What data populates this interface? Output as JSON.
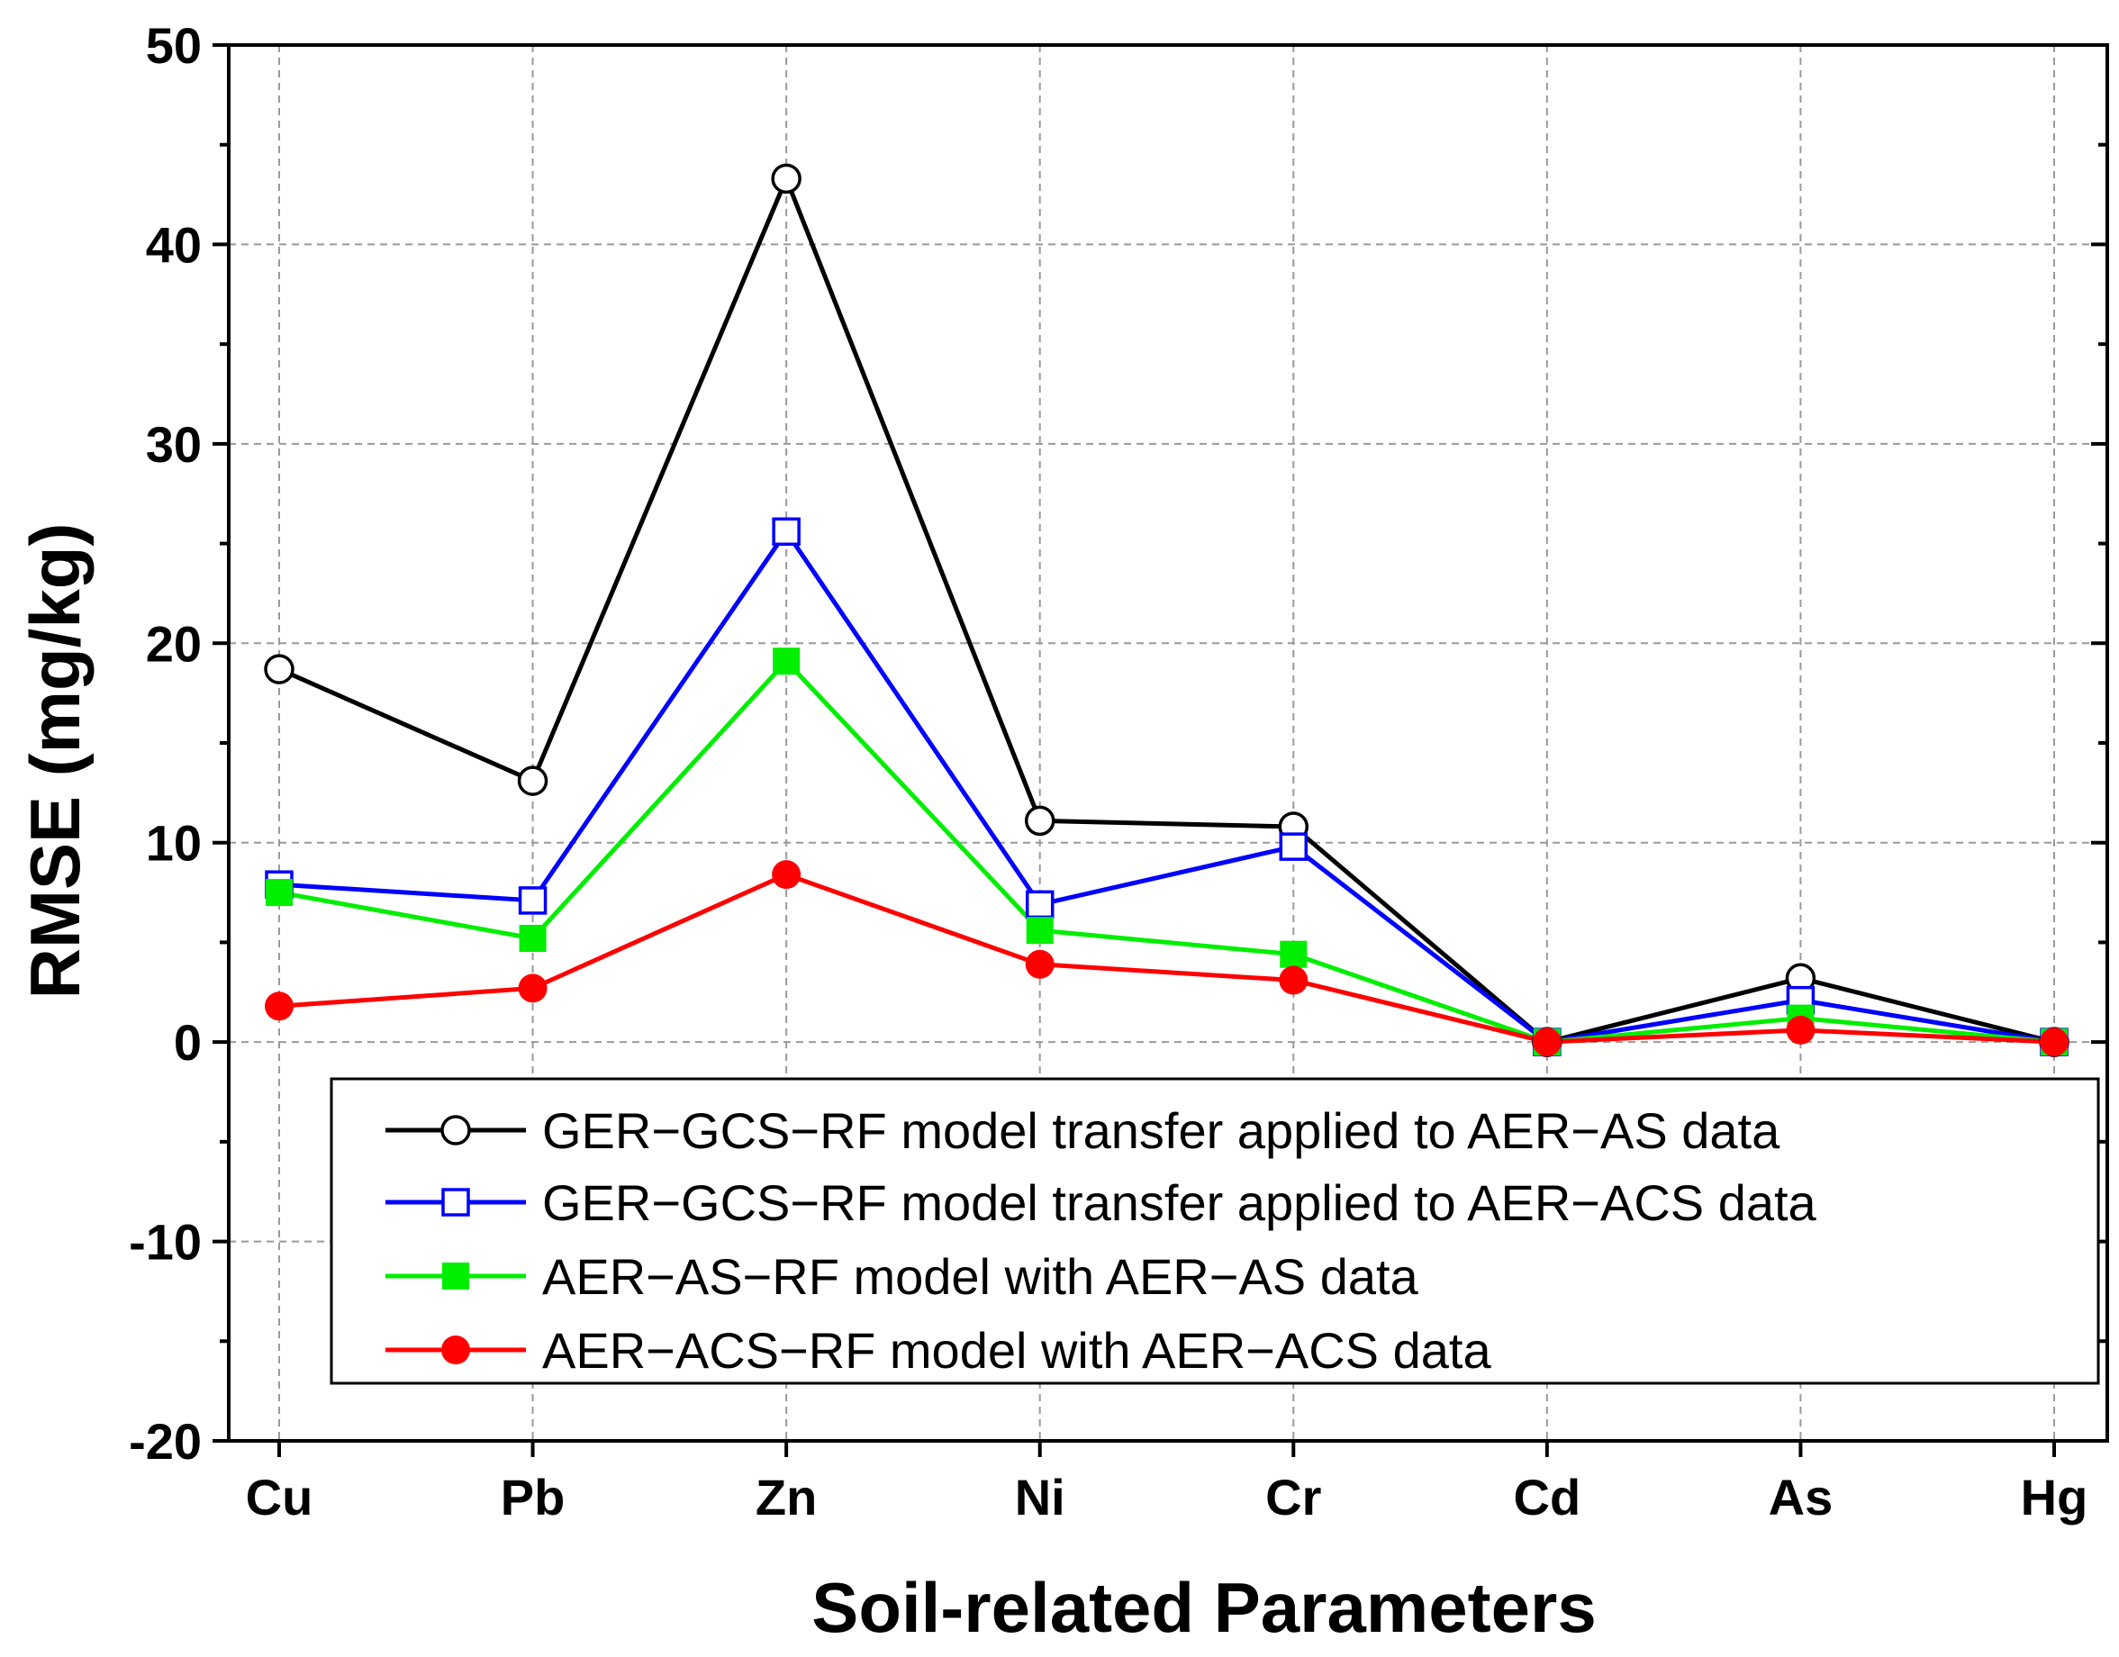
{
  "chart_data": {
    "type": "line",
    "title": "",
    "xlabel": "Soil-related Parameters",
    "ylabel": "RMSE (mg/kg)",
    "categories": [
      "Cu",
      "Pb",
      "Zn",
      "Ni",
      "Cr",
      "Cd",
      "As",
      "Hg"
    ],
    "ylim": [
      -20,
      50
    ],
    "yticks": [
      -20,
      -10,
      0,
      10,
      20,
      30,
      40,
      50
    ],
    "ytick_labels": [
      "-20",
      "-10",
      "0",
      "10",
      "20",
      "30",
      "40",
      "50"
    ],
    "grid": true,
    "legend_position": "bottom-right",
    "series": [
      {
        "name": "GER−GCS−RF model transfer applied to AER−AS data",
        "color": "#000000",
        "marker": "open-circle",
        "values": [
          18.7,
          13.1,
          43.3,
          11.1,
          10.8,
          0.0,
          3.2,
          0.0
        ]
      },
      {
        "name": "GER−GCS−RF model transfer applied to AER−ACS data",
        "color": "#0000ff",
        "marker": "open-square",
        "values": [
          7.9,
          7.1,
          25.6,
          6.9,
          9.8,
          0.0,
          2.1,
          0.0
        ]
      },
      {
        "name": "AER−AS−RF model with AER−AS data",
        "color": "#00ee00",
        "marker": "filled-square",
        "values": [
          7.5,
          5.2,
          19.1,
          5.6,
          4.4,
          0.0,
          1.2,
          0.0
        ]
      },
      {
        "name": "AER−ACS−RF model with AER−ACS data",
        "color": "#ff0000",
        "marker": "filled-circle",
        "values": [
          1.8,
          2.7,
          8.4,
          3.9,
          3.1,
          0.0,
          0.6,
          0.0
        ]
      }
    ]
  }
}
